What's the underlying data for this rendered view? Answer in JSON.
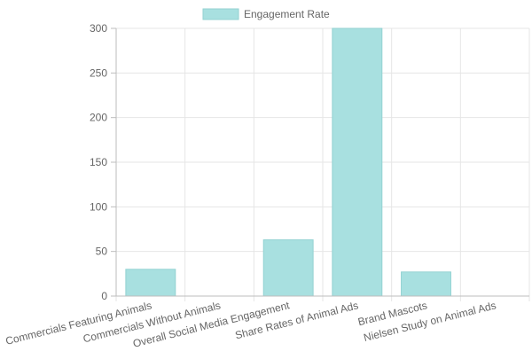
{
  "chart_data": {
    "type": "bar",
    "title": "",
    "xlabel": "",
    "ylabel": "",
    "categories": [
      "Commercials Featuring Animals",
      "Commercials Without Animals",
      "Overall Social Media Engagement",
      "Share Rates of Animal Ads",
      "Brand Mascots",
      "Nielsen Study on Animal Ads"
    ],
    "series": [
      {
        "name": "Engagement Rate",
        "values": [
          30,
          0,
          63,
          300,
          27,
          0
        ],
        "color": "#a8e0e0"
      }
    ],
    "ylim": [
      0,
      300
    ],
    "yticks": [
      0,
      50,
      100,
      150,
      200,
      250,
      300
    ],
    "grid": true,
    "legend_position": "top-center"
  }
}
